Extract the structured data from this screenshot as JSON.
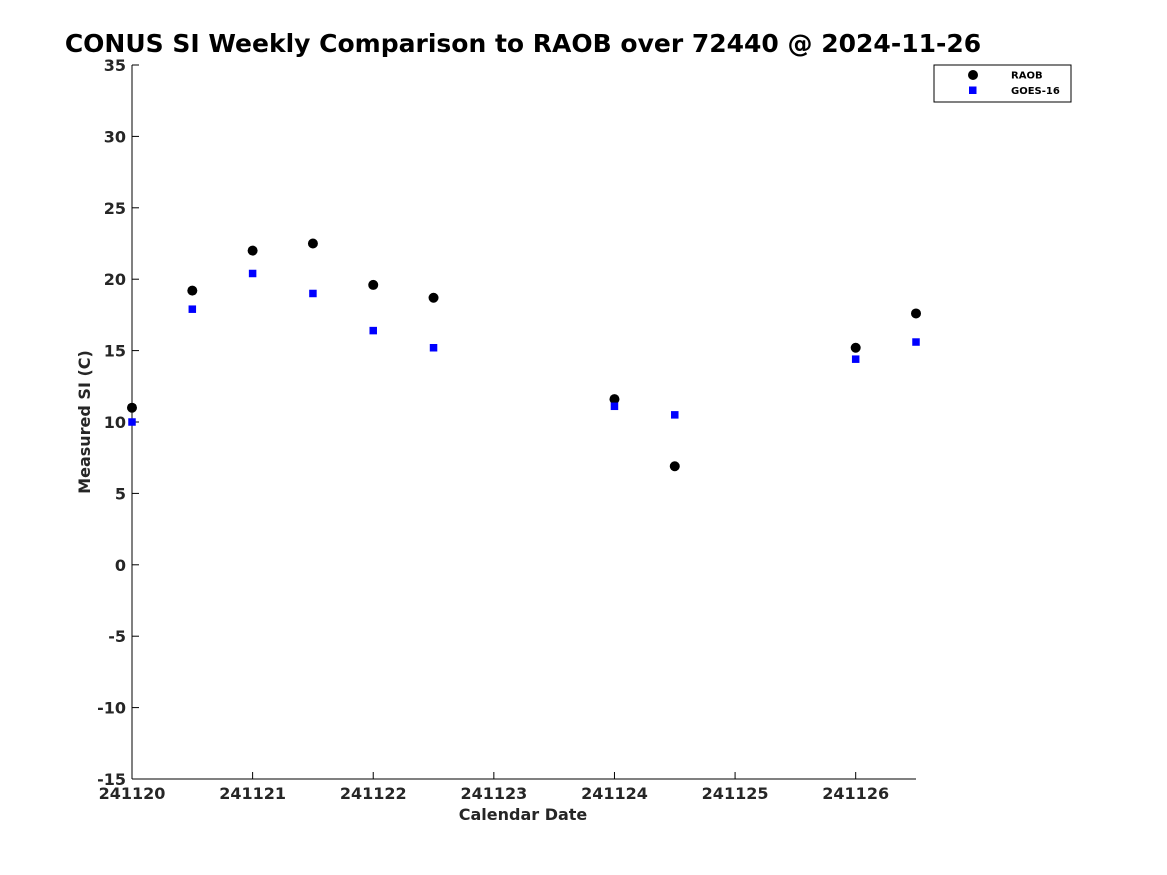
{
  "chart_data": {
    "type": "scatter",
    "title": "CONUS SI Weekly Comparison to RAOB over 72440 @ 2024-11-26",
    "xlabel": "Calendar Date",
    "ylabel": "Measured SI (C)",
    "x_tick_values": [
      "2024-11-20",
      "2024-11-21",
      "2024-11-22",
      "2024-11-23",
      "2024-11-24",
      "2024-11-25",
      "2024-11-26"
    ],
    "x_tick_labels": [
      "241120",
      "241121",
      "241122",
      "241123",
      "241124",
      "241125",
      "241126"
    ],
    "xlim": [
      "2024-11-20 00:00",
      "2024-11-26 12:00"
    ],
    "ylim": [
      -15,
      35
    ],
    "y_ticks": [
      35,
      30,
      25,
      20,
      15,
      10,
      5,
      0,
      -5,
      -10,
      -15
    ],
    "grid": false,
    "legend_position": "top-right",
    "series": [
      {
        "name": "RAOB",
        "marker": "circle",
        "color": "#000000",
        "points": [
          {
            "x": "2024-11-20 00:00",
            "y": 11.0
          },
          {
            "x": "2024-11-20 12:00",
            "y": 19.2
          },
          {
            "x": "2024-11-21 00:00",
            "y": 22.0
          },
          {
            "x": "2024-11-21 12:00",
            "y": 22.5
          },
          {
            "x": "2024-11-22 00:00",
            "y": 19.6
          },
          {
            "x": "2024-11-22 12:00",
            "y": 18.7
          },
          {
            "x": "2024-11-24 00:00",
            "y": 11.6
          },
          {
            "x": "2024-11-24 12:00",
            "y": 6.9
          },
          {
            "x": "2024-11-26 00:00",
            "y": 15.2
          },
          {
            "x": "2024-11-26 12:00",
            "y": 17.6
          }
        ]
      },
      {
        "name": "GOES-16",
        "marker": "square",
        "color": "#0000ff",
        "points": [
          {
            "x": "2024-11-20 00:00",
            "y": 10.0
          },
          {
            "x": "2024-11-20 12:00",
            "y": 17.9
          },
          {
            "x": "2024-11-21 00:00",
            "y": 20.4
          },
          {
            "x": "2024-11-21 12:00",
            "y": 19.0
          },
          {
            "x": "2024-11-22 00:00",
            "y": 16.4
          },
          {
            "x": "2024-11-22 12:00",
            "y": 15.2
          },
          {
            "x": "2024-11-24 00:00",
            "y": 11.1
          },
          {
            "x": "2024-11-24 12:00",
            "y": 10.5
          },
          {
            "x": "2024-11-26 00:00",
            "y": 14.4
          },
          {
            "x": "2024-11-26 12:00",
            "y": 15.6
          }
        ]
      }
    ]
  }
}
